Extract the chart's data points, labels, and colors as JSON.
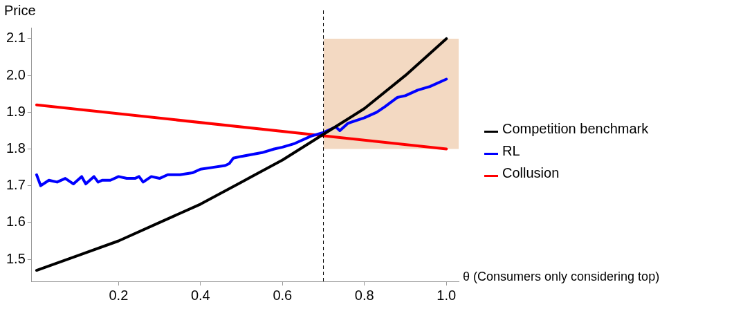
{
  "chart_data": {
    "type": "line",
    "xlabel": "θ (Consumers only considering top)",
    "ylabel": "Price",
    "xlim": [
      -0.012,
      1.03
    ],
    "ylim": [
      1.44,
      2.13
    ],
    "xticks": [
      0.2,
      0.4,
      0.6,
      0.8,
      {
        "value": 1,
        "label": "1.0"
      }
    ],
    "yticks": [
      1.5,
      1.6,
      1.7,
      1.8,
      1.9,
      {
        "value": 2,
        "label": "2.0"
      },
      2.1
    ],
    "grid": false,
    "legend": "right",
    "marker": "none",
    "line_style": "solid",
    "ref_lines": [
      {
        "axis": "x",
        "value": 0.7,
        "color": "#000000",
        "line_style": "dashed"
      }
    ],
    "series": [
      {
        "type": "area",
        "color": "#f3d9c2",
        "x": [
          0.7,
          1.03
        ],
        "values": [
          null,
          null
        ],
        "lower": [
          1.8,
          1.8
        ],
        "upper": [
          2.1,
          2.1
        ]
      },
      {
        "name": "Competition benchmark",
        "color": "#000000",
        "x": [
          0,
          0.1,
          0.2,
          0.3,
          0.4,
          0.5,
          0.6,
          0.7,
          0.8,
          0.9,
          1.0
        ],
        "values": [
          1.47,
          1.51,
          1.55,
          1.6,
          1.65,
          1.71,
          1.77,
          1.84,
          1.91,
          2.0,
          2.1
        ]
      },
      {
        "name": "RL",
        "color": "#0000ff",
        "x": [
          0,
          0.01,
          0.03,
          0.05,
          0.07,
          0.09,
          0.11,
          0.12,
          0.14,
          0.15,
          0.16,
          0.18,
          0.2,
          0.22,
          0.24,
          0.25,
          0.26,
          0.28,
          0.3,
          0.32,
          0.35,
          0.38,
          0.4,
          0.43,
          0.46,
          0.47,
          0.48,
          0.5,
          0.55,
          0.58,
          0.6,
          0.63,
          0.67,
          0.7,
          0.72,
          0.73,
          0.74,
          0.76,
          0.8,
          0.83,
          0.85,
          0.88,
          0.9,
          0.93,
          0.96,
          1.0
        ],
        "values": [
          1.73,
          1.7,
          1.715,
          1.71,
          1.72,
          1.705,
          1.725,
          1.705,
          1.725,
          1.71,
          1.715,
          1.715,
          1.725,
          1.72,
          1.72,
          1.725,
          1.71,
          1.725,
          1.72,
          1.73,
          1.73,
          1.735,
          1.745,
          1.75,
          1.755,
          1.76,
          1.775,
          1.78,
          1.79,
          1.8,
          1.805,
          1.815,
          1.835,
          1.845,
          1.855,
          1.86,
          1.85,
          1.87,
          1.885,
          1.9,
          1.915,
          1.94,
          1.945,
          1.96,
          1.97,
          1.99
        ]
      },
      {
        "name": "Collusion",
        "color": "#ff0000",
        "x": [
          0,
          1.0
        ],
        "values": [
          1.92,
          1.8
        ]
      }
    ]
  }
}
